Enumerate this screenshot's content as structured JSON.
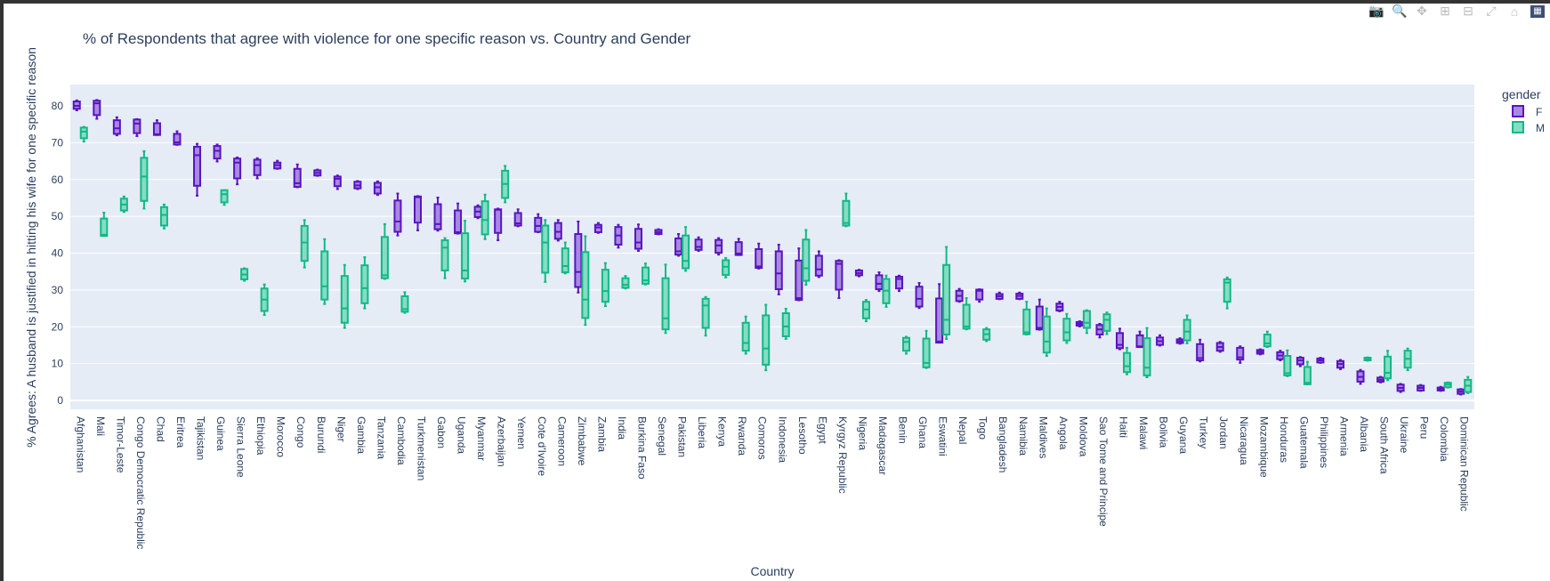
{
  "modebar": {
    "icons": [
      "camera-icon",
      "zoom-icon",
      "pan-icon",
      "zoom-in-icon",
      "zoom-out-icon",
      "autoscale-icon",
      "home-icon",
      "plotly-logo-icon"
    ]
  },
  "chart_data": {
    "type": "box",
    "title": "% of Respondents that agree with violence for one specific reason vs. Country and Gender",
    "xlabel": "Country",
    "ylabel": "%  Agrees:  A husband is justified in hitting his wife for one specific reason",
    "ylim": [
      -2.4,
      85.8
    ],
    "yticks": [
      0,
      10,
      20,
      30,
      40,
      50,
      60,
      70,
      80
    ],
    "grid": true,
    "legend": {
      "title": "gender",
      "placement": "top-right"
    },
    "box_stat_order": [
      "min",
      "q1",
      "median",
      "q3",
      "max"
    ],
    "categories": [
      "Afghanistan",
      "Mali",
      "Timor-Leste",
      "Congo Democratic Republic",
      "Chad",
      "Eritrea",
      "Tajikistan",
      "Guinea",
      "Sierra Leone",
      "Ethiopia",
      "Morocco",
      "Congo",
      "Burundi",
      "Niger",
      "Gambia",
      "Tanzania",
      "Cambodia",
      "Turkmenistan",
      "Gabon",
      "Uganda",
      "Myanmar",
      "Azerbaijan",
      "Yemen",
      "Cote d'Ivoire",
      "Cameroon",
      "Zimbabwe",
      "Zambia",
      "India",
      "Burkina Faso",
      "Senegal",
      "Pakistan",
      "Liberia",
      "Kenya",
      "Rwanda",
      "Comoros",
      "Indonesia",
      "Lesotho",
      "Egypt",
      "Kyrgyz Republic",
      "Nigeria",
      "Madagascar",
      "Benin",
      "Ghana",
      "Eswatini",
      "Nepal",
      "Togo",
      "Bangladesh",
      "Namibia",
      "Maldives",
      "Angola",
      "Moldova",
      "Sao Tome and Principe",
      "Haiti",
      "Malawi",
      "Bolivia",
      "Guyana",
      "Turkey",
      "Jordan",
      "Nicaragua",
      "Mozambique",
      "Honduras",
      "Guatemala",
      "Philippines",
      "Armenia",
      "Albania",
      "South Africa",
      "Ukraine",
      "Peru",
      "Colombia",
      "Dominican Republic"
    ],
    "series": [
      {
        "name": "F",
        "line_color": "#5a14c0",
        "fill_color": "#a68ae0",
        "boxes": [
          [
            78.8,
            79.2,
            80,
            81.2,
            81.5
          ],
          [
            76.5,
            77.5,
            80.7,
            81.4,
            81.6
          ],
          [
            72,
            72.4,
            73.9,
            76.1,
            76.9
          ],
          [
            71.8,
            72.6,
            75.2,
            76.3,
            76.4
          ],
          [
            72.1,
            72.1,
            72.3,
            75.3,
            76.1
          ],
          [
            69.4,
            69.5,
            70.1,
            72.4,
            73.1
          ],
          [
            55.6,
            58.3,
            66.6,
            68.9,
            69.7
          ],
          [
            64.9,
            65.7,
            67.8,
            69.1,
            69.5
          ],
          [
            58.7,
            60.3,
            64.6,
            65.7,
            66
          ],
          [
            60.3,
            61.2,
            63.9,
            65.4,
            65.8
          ],
          [
            62.9,
            63,
            63.9,
            64.6,
            65.1
          ],
          [
            57.9,
            58,
            59,
            62.9,
            64.1
          ],
          [
            61,
            61.1,
            61.8,
            62.5,
            62.7
          ],
          [
            57.4,
            58.2,
            60.2,
            60.8,
            61.1
          ],
          [
            57.4,
            57.6,
            58.4,
            59.4,
            59.6
          ],
          [
            55.8,
            56.2,
            57.9,
            59.1,
            59.5
          ],
          [
            44.8,
            45.8,
            48.6,
            54.3,
            56.2
          ],
          [
            46.2,
            48.3,
            55.2,
            55.4,
            55.5
          ],
          [
            46.1,
            46.5,
            47.9,
            53.3,
            55.1
          ],
          [
            45.3,
            45.4,
            45.7,
            51.6,
            53.5
          ],
          [
            49.5,
            49.8,
            51.3,
            52.6,
            53
          ],
          [
            43.5,
            45.5,
            51.8,
            51.9,
            52.1
          ],
          [
            47.3,
            47.5,
            48.1,
            50.9,
            51.9
          ],
          [
            45.7,
            45.8,
            47.4,
            49.6,
            50.6
          ],
          [
            43.4,
            43.9,
            45.8,
            48.2,
            49
          ],
          [
            29.3,
            30.8,
            34.9,
            45.2,
            48.6
          ],
          [
            45.5,
            45.7,
            47,
            47.7,
            48.2
          ],
          [
            41.5,
            42.3,
            44.8,
            47.1,
            47.7
          ],
          [
            40.6,
            41.2,
            42.9,
            46.6,
            47.8
          ],
          [
            45.1,
            45.2,
            45.7,
            46.3,
            46.5
          ],
          [
            39.3,
            39.6,
            40.5,
            44,
            45.2
          ],
          [
            40.6,
            40.9,
            41.7,
            43.7,
            44.3
          ],
          [
            39.6,
            40.1,
            42.1,
            43.6,
            44.1
          ],
          [
            39.5,
            39.5,
            39.9,
            43,
            43.9
          ],
          [
            35.8,
            36,
            36.4,
            41.1,
            42.6
          ],
          [
            28.8,
            30.2,
            34.5,
            40.5,
            42.3
          ],
          [
            27.2,
            27.3,
            27.8,
            38,
            41.3
          ],
          [
            33.5,
            33.9,
            35.6,
            39.3,
            40.5
          ],
          [
            27.8,
            30.1,
            37.1,
            37.9,
            38.1
          ],
          [
            33.7,
            34,
            34.6,
            35.3,
            35.5
          ],
          [
            29.7,
            30.2,
            31.7,
            34,
            34.8
          ],
          [
            29.7,
            30.4,
            33,
            33.6,
            33.9
          ],
          [
            25.1,
            25.5,
            27.6,
            30.9,
            31.9
          ],
          [
            15.7,
            15.7,
            16,
            27.7,
            31.6
          ],
          [
            26.8,
            27,
            28.4,
            29.8,
            30.3
          ],
          [
            26.8,
            27.4,
            29.8,
            30.1,
            30.2
          ],
          [
            27.5,
            27.6,
            28.3,
            28.9,
            29.3
          ],
          [
            27.5,
            27.6,
            28.4,
            29,
            29.3
          ],
          [
            19.2,
            19.3,
            19.7,
            25.5,
            27.4
          ],
          [
            24.2,
            24.4,
            25.4,
            26.3,
            26.8
          ],
          [
            20.1,
            20.3,
            20.8,
            21.3,
            21.5
          ],
          [
            17.1,
            17.9,
            19.3,
            20.5,
            20.8
          ],
          [
            13.9,
            14.2,
            15.1,
            18.3,
            19.5
          ],
          [
            14.5,
            14.5,
            14.7,
            17.7,
            18.7
          ],
          [
            14.9,
            15.1,
            16.1,
            17.1,
            17.7
          ],
          [
            15.4,
            15.6,
            16.1,
            16.6,
            16.9
          ],
          [
            10.6,
            10.9,
            11.5,
            15.3,
            16.5
          ],
          [
            13.2,
            13.5,
            14.5,
            15.6,
            15.9
          ],
          [
            10.2,
            11.1,
            11.7,
            14.3,
            14.7
          ],
          [
            12.5,
            12.7,
            13.2,
            13.7,
            13.9
          ],
          [
            10.9,
            11.2,
            12.2,
            13.1,
            13.5
          ],
          [
            9.3,
            9.8,
            10.9,
            11.6,
            11.8
          ],
          [
            10.2,
            10.3,
            10.9,
            11.4,
            11.6
          ],
          [
            8.5,
            8.9,
            9.9,
            10.7,
            11
          ],
          [
            4.5,
            5.1,
            6.4,
            7.9,
            8.3
          ],
          [
            4.9,
            5.1,
            5.6,
            6.2,
            6.4
          ],
          [
            2.3,
            2.6,
            3.4,
            4.3,
            4.5
          ],
          [
            2.6,
            2.7,
            3.4,
            4,
            4.2
          ],
          [
            2.6,
            2.7,
            3.1,
            3.5,
            3.7
          ],
          [
            1.6,
            1.8,
            2.4,
            3,
            3.1
          ]
        ]
      },
      {
        "name": "M",
        "line_color": "#12b886",
        "fill_color": "#86dcc3",
        "boxes": [
          [
            70.3,
            71.2,
            73,
            74.1,
            74.3
          ],
          [
            44.7,
            44.7,
            45,
            49.4,
            51
          ],
          [
            51.2,
            51.6,
            53.2,
            54.8,
            55.4
          ],
          [
            52.1,
            54.2,
            60.8,
            65.9,
            67.7
          ],
          [
            46.7,
            47.5,
            50.4,
            52.5,
            53.2
          ],
          null,
          null,
          [
            53.1,
            53.8,
            56,
            57.1,
            57.1
          ],
          [
            32.5,
            32.9,
            34.2,
            35.7,
            35.9
          ],
          [
            23.2,
            24.3,
            27.4,
            30.4,
            31.5
          ],
          null,
          [
            36.1,
            37.9,
            42.9,
            47.4,
            49
          ],
          [
            26.2,
            27.4,
            31,
            40.5,
            43.8
          ],
          [
            19.7,
            21.1,
            25,
            33.8,
            36.8
          ],
          [
            25,
            26.4,
            30.5,
            36.7,
            38.9
          ],
          [
            33,
            33.2,
            34,
            44.4,
            47.9
          ],
          [
            23.8,
            24.1,
            24.8,
            28.3,
            29.4
          ],
          null,
          [
            33.2,
            35.3,
            41.5,
            43.5,
            44.1
          ],
          [
            32.3,
            33.1,
            35.3,
            45.4,
            48.8
          ],
          [
            43.8,
            45.1,
            49,
            54.1,
            55.9
          ],
          [
            53.8,
            55,
            58.8,
            62.4,
            63.7
          ],
          null,
          [
            32.2,
            34.7,
            42.9,
            47.5,
            49
          ],
          [
            34.5,
            34.8,
            36.5,
            41.3,
            42.9
          ],
          [
            20.5,
            22.4,
            27.4,
            40.3,
            44.6
          ],
          [
            25.6,
            26.8,
            29.7,
            35.5,
            37.3
          ],
          [
            30.4,
            30.6,
            31.4,
            33.2,
            33.8
          ],
          [
            31.5,
            31.7,
            32.6,
            36.1,
            37.2
          ],
          [
            18.3,
            19.3,
            22.3,
            33.2,
            36.9
          ],
          [
            35.2,
            35.9,
            37.9,
            44.8,
            47.1
          ],
          [
            17.6,
            19.7,
            25.8,
            27.6,
            28.1
          ],
          [
            33.4,
            34.1,
            36.3,
            38.1,
            38.7
          ],
          [
            12.7,
            13.5,
            15.6,
            21.1,
            22.8
          ],
          [
            8.2,
            9.7,
            14.1,
            23.1,
            26
          ],
          [
            16.7,
            17.4,
            20.1,
            23.7,
            24.9
          ],
          [
            31.4,
            32.5,
            35.9,
            43.7,
            46.3
          ],
          null,
          [
            47.3,
            47.5,
            48.2,
            54.2,
            56.2
          ],
          [
            21.5,
            22.3,
            24.7,
            26.8,
            27.3
          ],
          [
            25.4,
            26.4,
            29.8,
            33,
            33.9
          ],
          [
            12.7,
            13.5,
            15.9,
            17,
            17.3
          ],
          [
            8.8,
            9,
            10.2,
            16.8,
            18.9
          ],
          [
            16.7,
            17.9,
            21.9,
            36.8,
            41.7
          ],
          [
            19.3,
            19.5,
            20.1,
            26,
            27.8
          ],
          [
            16.1,
            16.5,
            18,
            19.3,
            19.7
          ],
          null,
          [
            17.9,
            18,
            18.5,
            24.7,
            26.8
          ],
          [
            12.1,
            13,
            16,
            22.8,
            25
          ],
          [
            15.6,
            16.3,
            18.5,
            22.2,
            23.5
          ],
          [
            18.3,
            19.7,
            21.1,
            24.3,
            24.5
          ],
          [
            18,
            18.9,
            21.9,
            23.4,
            23.9
          ],
          [
            7.1,
            7.7,
            9.3,
            12.9,
            14.3
          ],
          [
            6.3,
            6.8,
            8.9,
            16.9,
            19.7
          ],
          null,
          [
            15.5,
            16.3,
            18.7,
            21.9,
            23.1
          ],
          null,
          [
            25,
            26.8,
            32,
            32.9,
            33.4
          ],
          null,
          [
            14.5,
            14.7,
            15.5,
            17.9,
            18.7
          ],
          [
            6.6,
            6.8,
            7.4,
            12.1,
            13.6
          ],
          [
            4.4,
            4.4,
            4.8,
            9.1,
            10.5
          ],
          null,
          null,
          [
            10.8,
            10.9,
            11.2,
            11.6,
            11.7
          ],
          [
            5.5,
            6,
            7.5,
            11.9,
            13.5
          ],
          [
            8.2,
            8.9,
            11.3,
            13.5,
            14.1
          ],
          null,
          [
            3.5,
            3.6,
            4.3,
            4.8,
            4.9
          ],
          [
            2,
            2.3,
            4,
            5.6,
            6.4
          ]
        ]
      }
    ]
  }
}
